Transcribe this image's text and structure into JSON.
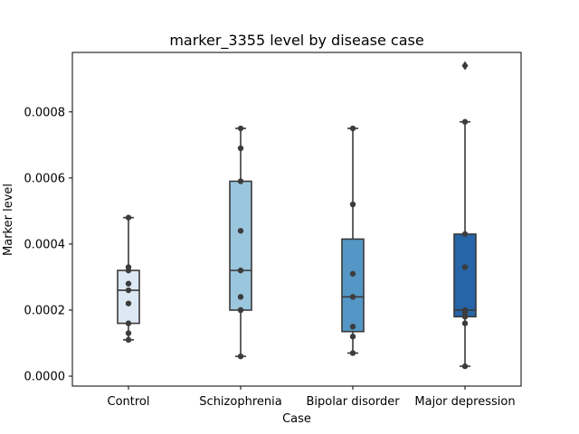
{
  "chart_data": {
    "type": "box",
    "title": "marker_3355 level by disease case",
    "xlabel": "Case",
    "ylabel": "Marker level",
    "categories": [
      "Control",
      "Schizophrenia",
      "Bipolar disorder",
      "Major depression"
    ],
    "y_ticks": [
      "0.0000",
      "0.0002",
      "0.0004",
      "0.0006",
      "0.0008"
    ],
    "ylim": [
      -3e-05,
      0.00098
    ],
    "grid": false,
    "boxes": [
      {
        "category": "Control",
        "whisker_low": 0.00011,
        "q1": 0.00016,
        "median": 0.00026,
        "q3": 0.00032,
        "whisker_high": 0.00048,
        "outliers": [],
        "color": "#dce8f4"
      },
      {
        "category": "Schizophrenia",
        "whisker_low": 6e-05,
        "q1": 0.0002,
        "median": 0.00032,
        "q3": 0.00059,
        "whisker_high": 0.00075,
        "outliers": [],
        "color": "#9ac6de"
      },
      {
        "category": "Bipolar disorder",
        "whisker_low": 7e-05,
        "q1": 0.000135,
        "median": 0.00024,
        "q3": 0.000415,
        "whisker_high": 0.00075,
        "outliers": [],
        "color": "#5497c6"
      },
      {
        "category": "Major depression",
        "whisker_low": 3e-05,
        "q1": 0.00018,
        "median": 0.0002,
        "q3": 0.00043,
        "whisker_high": 0.00077,
        "outliers": [
          0.00094
        ],
        "color": "#2565a8"
      }
    ],
    "points": [
      [
        0.00048,
        0.00033,
        0.00032,
        0.00028,
        0.00026,
        0.00022,
        0.00016,
        0.00013,
        0.00011
      ],
      [
        0.00075,
        0.00069,
        0.00059,
        0.00044,
        0.00032,
        0.00024,
        0.0002,
        0.0002,
        6e-05
      ],
      [
        0.00075,
        0.00052,
        0.00031,
        0.00024,
        0.00015,
        0.00012,
        7e-05
      ],
      [
        0.00077,
        0.00043,
        0.00033,
        0.0002,
        0.00019,
        0.00018,
        0.00016,
        3e-05
      ]
    ]
  }
}
